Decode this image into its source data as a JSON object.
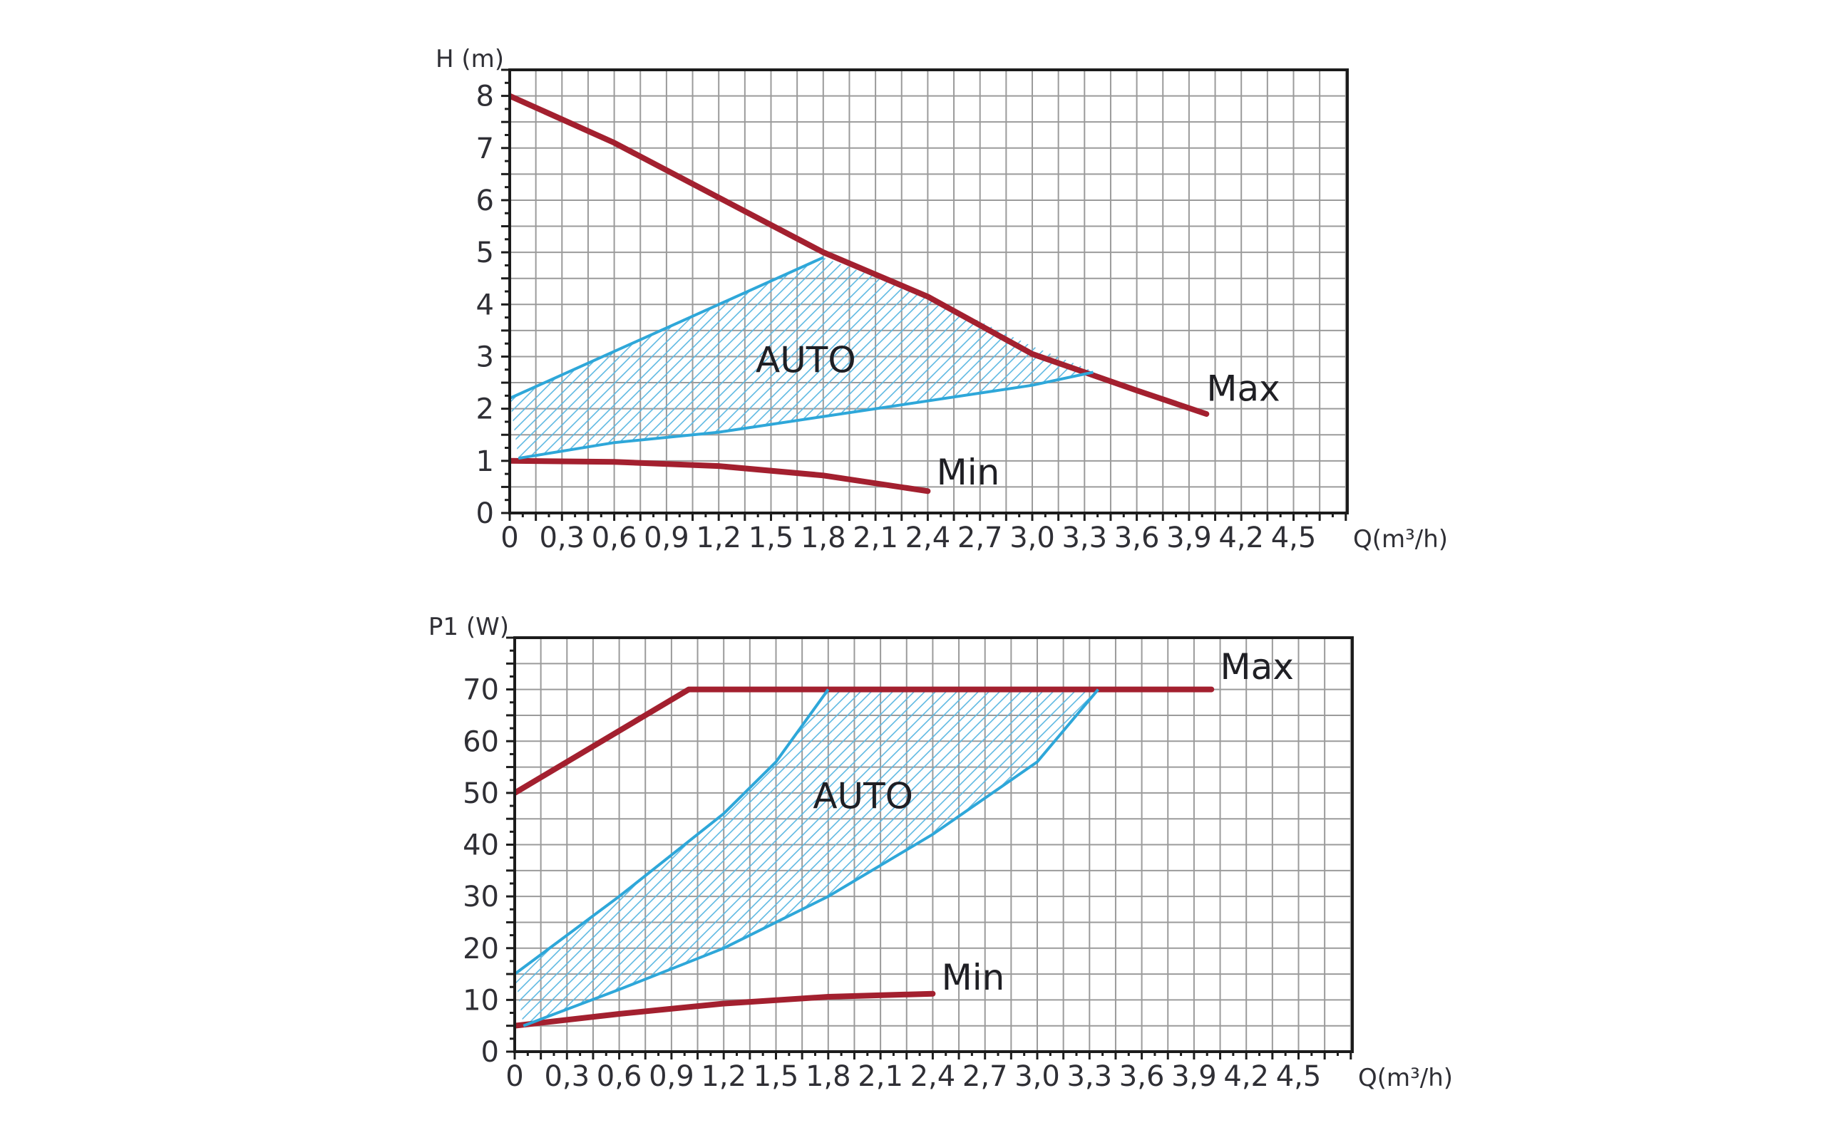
{
  "colors": {
    "max_min_curve": "#a3202f",
    "auto_curve": "#2ea7d9",
    "hatch": "#5fb9e2",
    "grid": "#9b9b9b",
    "frame": "#1c1c1c",
    "background": "#ffffff"
  },
  "chart_data": [
    {
      "type": "line",
      "title": "",
      "xlabel": "Q(m³/h)",
      "ylabel": "H (m)",
      "x_ticks": [
        "0",
        "0,3",
        "0,6",
        "0,9",
        "1,2",
        "1,5",
        "1,8",
        "2,1",
        "2,4",
        "2,7",
        "3,0",
        "3,3",
        "3,6",
        "3,9",
        "4,2",
        "4,5"
      ],
      "y_ticks": [
        "0",
        "1",
        "2",
        "3",
        "4",
        "5",
        "6",
        "7",
        "8"
      ],
      "xlim": [
        0,
        4.8
      ],
      "ylim": [
        0,
        8.5
      ],
      "grid": true,
      "series": [
        {
          "name": "Max",
          "style": "red-thick",
          "x": [
            0,
            0.6,
            1.2,
            1.8,
            2.4,
            3.0,
            3.6,
            4.0
          ],
          "y": [
            8.0,
            7.1,
            6.05,
            5.0,
            4.15,
            3.05,
            2.35,
            1.9
          ]
        },
        {
          "name": "Min",
          "style": "red-thick",
          "x": [
            0,
            0.6,
            1.2,
            1.8,
            2.4
          ],
          "y": [
            1.0,
            0.98,
            0.9,
            0.72,
            0.42
          ]
        },
        {
          "name": "",
          "style": "auto-upper",
          "x": [
            0,
            0.6,
            1.2,
            1.8
          ],
          "y": [
            2.2,
            3.1,
            4.0,
            4.9
          ]
        },
        {
          "name": "",
          "style": "auto-lower",
          "x": [
            0.05,
            0.6,
            1.2,
            1.8,
            2.4,
            3.0,
            3.35
          ],
          "y": [
            1.05,
            1.35,
            1.55,
            1.85,
            2.15,
            2.45,
            2.7
          ]
        }
      ],
      "auto_area": {
        "label": "AUTO",
        "label_at": [
          1.7,
          2.7
        ],
        "polygon_x": [
          0,
          0.6,
          1.2,
          1.8,
          2.4,
          3.0,
          3.35,
          3.0,
          2.4,
          1.8,
          1.2,
          0.6,
          0.05
        ],
        "polygon_y": [
          2.2,
          3.1,
          4.0,
          4.9,
          4.15,
          3.2,
          2.72,
          2.45,
          2.15,
          1.85,
          1.55,
          1.35,
          1.05
        ]
      },
      "curve_labels": [
        {
          "text": "Max",
          "at": [
            4.0,
            2.15
          ]
        },
        {
          "text": "Min",
          "at": [
            2.45,
            0.55
          ]
        }
      ]
    },
    {
      "type": "line",
      "title": "",
      "xlabel": "Q(m³/h)",
      "ylabel": "P1 (W)",
      "x_ticks": [
        "0",
        "0,3",
        "0,6",
        "0,9",
        "1,2",
        "1,5",
        "1,8",
        "2,1",
        "2,4",
        "2,7",
        "3,0",
        "3,3",
        "3,6",
        "3,9",
        "4,2",
        "4,5"
      ],
      "y_ticks": [
        "0",
        "10",
        "20",
        "30",
        "40",
        "50",
        "60",
        "70"
      ],
      "xlim": [
        0,
        4.8
      ],
      "ylim": [
        0,
        80
      ],
      "grid": true,
      "series": [
        {
          "name": "Max",
          "style": "red-thick",
          "x": [
            0,
            1.0,
            4.0
          ],
          "y": [
            50,
            70,
            70
          ]
        },
        {
          "name": "Min",
          "style": "red-thick",
          "x": [
            0,
            0.6,
            1.2,
            1.8,
            2.4
          ],
          "y": [
            5,
            7.3,
            9.3,
            10.6,
            11.2
          ]
        },
        {
          "name": "",
          "style": "auto-upper",
          "x": [
            0,
            0.6,
            1.2,
            1.5,
            1.8
          ],
          "y": [
            15,
            30,
            46,
            56,
            70
          ]
        },
        {
          "name": "",
          "style": "auto-lower",
          "x": [
            0.05,
            0.6,
            1.2,
            1.8,
            2.4,
            3.0,
            3.35
          ],
          "y": [
            5,
            12,
            20,
            30,
            42,
            56,
            70
          ]
        }
      ],
      "auto_area": {
        "label": "AUTO",
        "label_at": [
          2.0,
          47
        ],
        "polygon_x": [
          0,
          0.6,
          1.2,
          1.5,
          1.8,
          3.35,
          3.0,
          2.4,
          1.8,
          1.2,
          0.6,
          0.05
        ],
        "polygon_y": [
          15,
          30,
          46,
          56,
          70,
          70,
          56,
          42,
          30,
          20,
          12,
          5
        ]
      },
      "curve_labels": [
        {
          "text": "Max",
          "at": [
            4.05,
            72
          ]
        },
        {
          "text": "Min",
          "at": [
            2.45,
            12
          ]
        }
      ]
    }
  ]
}
